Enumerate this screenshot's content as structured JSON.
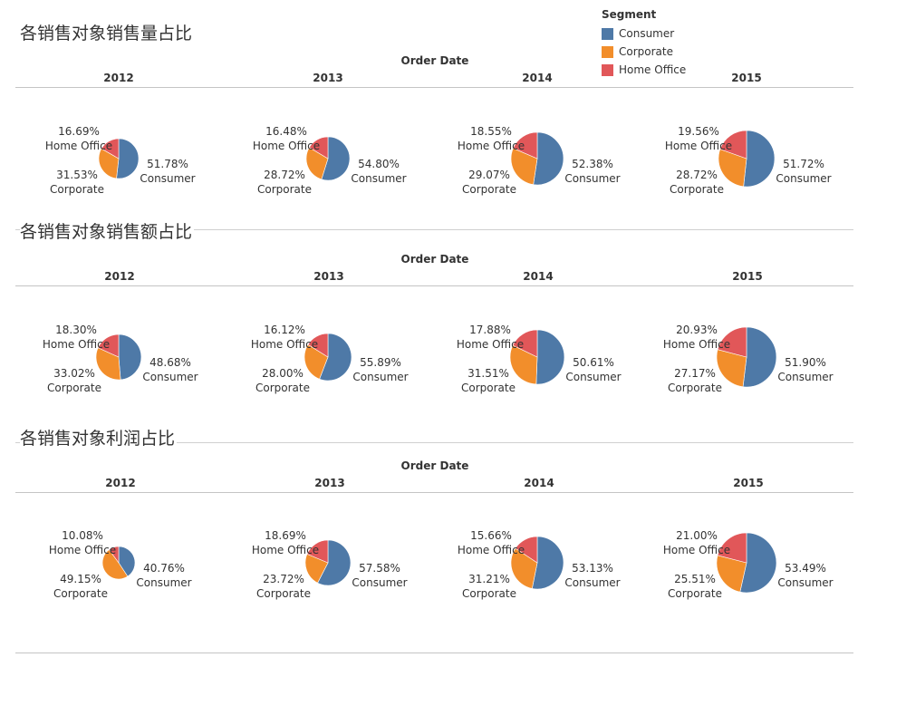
{
  "legend": {
    "title": "Segment",
    "items": [
      {
        "label": "Consumer",
        "color": "#4e79a7"
      },
      {
        "label": "Corporate",
        "color": "#f28e2b"
      },
      {
        "label": "Home Office",
        "color": "#e15759"
      }
    ]
  },
  "column_axis_label": "Order Date",
  "chart_data": [
    {
      "type": "pie",
      "title": "各销售对象销售量占比",
      "categories": [
        "Consumer",
        "Corporate",
        "Home Office"
      ],
      "years": [
        "2012",
        "2013",
        "2014",
        "2015"
      ],
      "series": [
        {
          "name": "2012",
          "values": [
            51.78,
            31.53,
            16.69
          ]
        },
        {
          "name": "2013",
          "values": [
            54.8,
            28.72,
            16.48
          ]
        },
        {
          "name": "2014",
          "values": [
            52.38,
            29.07,
            18.55
          ]
        },
        {
          "name": "2015",
          "values": [
            51.72,
            28.72,
            19.56
          ]
        }
      ]
    },
    {
      "type": "pie",
      "title": "各销售对象销售额占比",
      "categories": [
        "Consumer",
        "Corporate",
        "Home Office"
      ],
      "years": [
        "2012",
        "2013",
        "2014",
        "2015"
      ],
      "series": [
        {
          "name": "2012",
          "values": [
            48.68,
            33.02,
            18.3
          ]
        },
        {
          "name": "2013",
          "values": [
            55.89,
            28.0,
            16.12
          ]
        },
        {
          "name": "2014",
          "values": [
            50.61,
            31.51,
            17.88
          ]
        },
        {
          "name": "2015",
          "values": [
            51.9,
            27.17,
            20.93
          ]
        }
      ]
    },
    {
      "type": "pie",
      "title": "各销售对象利润占比",
      "categories": [
        "Consumer",
        "Corporate",
        "Home Office"
      ],
      "years": [
        "2012",
        "2013",
        "2014",
        "2015"
      ],
      "series": [
        {
          "name": "2012",
          "values": [
            40.76,
            49.15,
            10.08
          ]
        },
        {
          "name": "2013",
          "values": [
            57.58,
            23.72,
            18.69
          ]
        },
        {
          "name": "2014",
          "values": [
            53.13,
            31.21,
            15.66
          ]
        },
        {
          "name": "2015",
          "values": [
            53.49,
            25.51,
            21.0
          ]
        }
      ]
    }
  ]
}
